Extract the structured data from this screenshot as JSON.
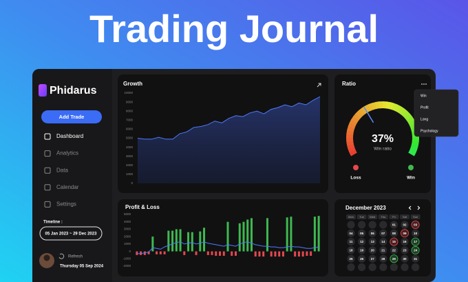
{
  "header": {
    "title": "Trading Journal"
  },
  "sidebar": {
    "brand": "Phidarus",
    "button": "Add Trade",
    "nav": [
      "Dashboard",
      "Analytics",
      "Data",
      "Calendar",
      "Settings"
    ],
    "timeline_label": "Timeline :",
    "timeline_range": "05 Jan 2023  ~  29 Dec 2023",
    "refresh": "Refresh",
    "date": "Thursday 05 Sep 2024"
  },
  "growth": {
    "type": "area",
    "title": "Growth",
    "color": "#4d7cfe",
    "values": [
      5000,
      4900,
      4900,
      5100,
      4900,
      4900,
      5500,
      5700,
      6200,
      6300,
      6500,
      6900,
      6700,
      7200,
      7500,
      7400,
      7800,
      8000,
      7700,
      8200,
      8400,
      8700,
      8500,
      8900,
      8700,
      9200,
      9600
    ],
    "ylim": [
      0,
      10000
    ],
    "yticks": [
      0,
      1000,
      2000,
      3000,
      4000,
      5000,
      6000,
      7000,
      8000,
      9000,
      10000
    ]
  },
  "profit_loss": {
    "type": "bar",
    "title": "Profit & Loss",
    "positive_color": "#3fb950",
    "negative_color": "#e5484d",
    "line_color": "#4d7cfe",
    "values": [
      -500,
      -500,
      -500,
      -400,
      2000,
      -400,
      -400,
      -400,
      2800,
      2800,
      3000,
      3000,
      -500,
      2600,
      2600,
      -500,
      2700,
      3200,
      -500,
      -500,
      -600,
      -600,
      -600,
      4000,
      -600,
      -600,
      3800,
      4000,
      4300,
      4500,
      -700,
      -700,
      -700,
      4500,
      -700,
      -700,
      -700,
      -700,
      4600,
      4700,
      -700,
      -700,
      -700,
      -600,
      -600,
      4700,
      4800
    ],
    "line": [
      -300,
      -300,
      -200,
      -100,
      500,
      400,
      300,
      600,
      800,
      1000,
      1200,
      1300,
      1000,
      1100,
      1200,
      1000,
      1100,
      1300,
      1100,
      1000,
      900,
      800,
      700,
      900,
      800,
      700,
      1000,
      1200,
      1300,
      1100,
      900,
      800,
      700,
      700,
      600,
      600,
      500,
      500,
      600,
      700,
      600,
      600,
      500,
      400,
      400,
      500,
      600
    ],
    "ylim": [
      -2000,
      5000
    ],
    "yticks": [
      -2000,
      -1000,
      0,
      1000,
      2000,
      3000,
      4000,
      5000
    ]
  },
  "ratio": {
    "type": "gauge",
    "title": "Ratio",
    "value": 37,
    "value_label": "37%",
    "caption": "Win ratio",
    "legend": [
      "Loss",
      "Win"
    ],
    "menu": [
      "Win",
      "Profit",
      "Long",
      "Psychology"
    ]
  },
  "calendar": {
    "title": "December 2023",
    "weekdays": [
      "Mon",
      "Tue",
      "Wed",
      "Thu",
      "Fri",
      "Sat",
      "Sun"
    ],
    "days": [
      null,
      null,
      null,
      null,
      "01",
      "02",
      "03",
      "04",
      "05",
      "06",
      "07",
      "08",
      "09",
      "10",
      "11",
      "12",
      "13",
      "14",
      "15",
      "16",
      "17",
      "18",
      "19",
      "20",
      "21",
      "22",
      "23",
      "24",
      "25",
      "26",
      "27",
      "28",
      "29",
      "30",
      "31",
      null,
      null,
      null,
      null,
      null,
      null,
      null
    ],
    "loss_days": [
      "03",
      "09",
      "15"
    ],
    "win_days": [
      "17",
      "24",
      "29"
    ]
  }
}
